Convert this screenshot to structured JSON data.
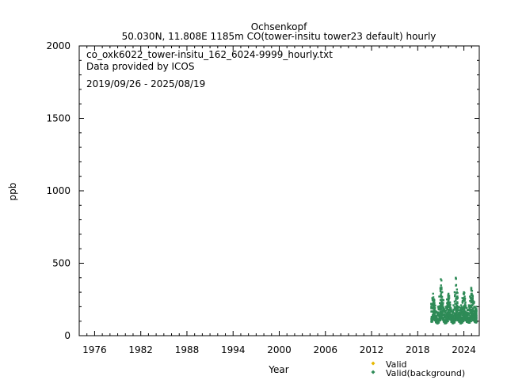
{
  "chart_data": {
    "type": "scatter",
    "title": "Ochsenkopf",
    "subtitle": "50.030N, 11.808E 1185m    CO(tower-insitu tower23 default) hourly",
    "xlabel": "Year",
    "ylabel": "ppb",
    "xlim": [
      1974,
      2026
    ],
    "ylim": [
      0,
      2000
    ],
    "x_ticks": [
      1976,
      1982,
      1988,
      1994,
      2000,
      2006,
      2012,
      2018,
      2024
    ],
    "y_ticks": [
      0,
      500,
      1000,
      1500,
      2000
    ],
    "grid": false,
    "annotations": [
      "co_oxk6022_tower-insitu_162_6024-9999_hourly.txt",
      "Data provided by ICOS",
      "2019/09/26 - 2025/08/19"
    ],
    "legend": {
      "placement": "bottom-right",
      "entries": [
        {
          "label": "Valid",
          "color": "#e6b800"
        },
        {
          "label": "Valid(background)",
          "color": "#2e8b57"
        }
      ]
    },
    "series": [
      {
        "name": "Valid(background)",
        "color": "#2e8b57",
        "x": [
          2019.75,
          2019.9,
          2020.0,
          2020.1,
          2020.2,
          2020.35,
          2020.5,
          2020.65,
          2020.8,
          2020.95,
          2021.0,
          2021.1,
          2021.2,
          2021.35,
          2021.5,
          2021.65,
          2021.8,
          2021.95,
          2022.0,
          2022.1,
          2022.2,
          2022.35,
          2022.5,
          2022.65,
          2022.8,
          2022.95,
          2023.0,
          2023.1,
          2023.2,
          2023.35,
          2023.5,
          2023.65,
          2023.8,
          2023.95,
          2024.0,
          2024.1,
          2024.2,
          2024.35,
          2024.5,
          2024.65,
          2024.8,
          2024.95,
          2025.0,
          2025.1,
          2025.2,
          2025.35,
          2025.5,
          2025.63
        ],
        "y_min": [
          95,
          110,
          120,
          115,
          105,
          90,
          85,
          90,
          105,
          120,
          125,
          120,
          110,
          95,
          85,
          90,
          100,
          115,
          125,
          120,
          110,
          95,
          85,
          90,
          105,
          115,
          120,
          115,
          105,
          95,
          85,
          90,
          100,
          110,
          120,
          115,
          105,
          95,
          90,
          90,
          100,
          115,
          120,
          115,
          105,
          95,
          90,
          95
        ],
        "y_max": [
          220,
          260,
          290,
          250,
          210,
          170,
          160,
          200,
          270,
          330,
          390,
          320,
          250,
          190,
          170,
          200,
          250,
          280,
          290,
          260,
          230,
          180,
          170,
          210,
          300,
          400,
          350,
          300,
          260,
          200,
          180,
          210,
          260,
          290,
          300,
          270,
          230,
          190,
          180,
          210,
          270,
          330,
          310,
          280,
          240,
          200,
          180,
          200
        ]
      }
    ]
  }
}
